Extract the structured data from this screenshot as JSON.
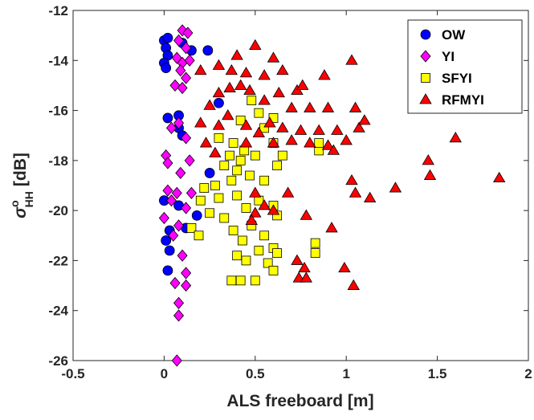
{
  "chart_data": {
    "type": "scatter",
    "x_label": "ALS freeboard [m]",
    "y_label": {
      "symbol": "σ",
      "sup": "o",
      "sub": "HH",
      "unit": "[dB]"
    },
    "xlim": [
      -0.5,
      2
    ],
    "xticks": [
      -0.5,
      0,
      0.5,
      1,
      1.5,
      2
    ],
    "ylim": [
      -26,
      -12
    ],
    "yticks": [
      -26,
      -24,
      -22,
      -20,
      -18,
      -16,
      -14,
      -12
    ],
    "grid": false,
    "legend": "upper right",
    "series": [
      {
        "name": "OW",
        "color": "#0000ff",
        "marker": "circle",
        "x": [
          0,
          0.01,
          0.02,
          0,
          0.01,
          0.02,
          0.1,
          0.15,
          0.24,
          0.3,
          0.02,
          0.08,
          0.08,
          0.1,
          0.25,
          0,
          0.08,
          0.03,
          0.01,
          0.03,
          0.02,
          0.12,
          0.18
        ],
        "values": [
          -13.2,
          -13.5,
          -13.8,
          -14.1,
          -14.3,
          -13.1,
          -13.3,
          -13.6,
          -13.6,
          -15.7,
          -16.3,
          -16.2,
          -16.7,
          -17,
          -18.5,
          -19.6,
          -19.8,
          -20.8,
          -21.2,
          -21.6,
          -22.4,
          -20.7,
          -20.2
        ]
      },
      {
        "name": "YI",
        "color": "#ff00ff",
        "marker": "diamond",
        "x": [
          0.1,
          0.13,
          0.08,
          0.12,
          0.07,
          0.1,
          0.14,
          0.09,
          0.12,
          0.06,
          0.1,
          0.08,
          0.04,
          0.12,
          0.01,
          0.02,
          0.14,
          0.09,
          0.02,
          0.07,
          0.04,
          0.12,
          0,
          0.08,
          0.05,
          0.1,
          0.12,
          0.06,
          0.12,
          0.08,
          0.08,
          0.07,
          0.15
        ],
        "values": [
          -12.8,
          -12.9,
          -13.2,
          -13.5,
          -13.9,
          -14.1,
          -14,
          -14.4,
          -14.7,
          -15,
          -15.1,
          -16.5,
          -16.7,
          -17.1,
          -17.8,
          -18.1,
          -18,
          -18.5,
          -19.2,
          -19.3,
          -19.6,
          -19.9,
          -20.3,
          -20.6,
          -21,
          -21.8,
          -22.5,
          -22.9,
          -23,
          -23.7,
          -24.2,
          -26,
          -19.3
        ]
      },
      {
        "name": "SFYI",
        "color": "#ffff00",
        "marker": "square",
        "x": [
          0.48,
          0.52,
          0.6,
          0.42,
          0.55,
          0.3,
          0.38,
          0.44,
          0.5,
          0.6,
          0.36,
          0.42,
          0.33,
          0.4,
          0.47,
          0.55,
          0.62,
          0.65,
          0.37,
          0.28,
          0.22,
          0.3,
          0.4,
          0.45,
          0.52,
          0.6,
          0.62,
          0.2,
          0.25,
          0.33,
          0.38,
          0.43,
          0.48,
          0.55,
          0.6,
          0.15,
          0.19,
          0.4,
          0.45,
          0.52,
          0.57,
          0.62,
          0.42,
          0.37,
          0.5,
          0.83,
          0.83,
          0.85,
          0.85,
          0.6
        ],
        "values": [
          -15.6,
          -16.1,
          -16.3,
          -16.4,
          -16.7,
          -17.1,
          -17.3,
          -17.6,
          -17.8,
          -17.3,
          -17.8,
          -18,
          -18.2,
          -18.4,
          -18.6,
          -18.8,
          -18.2,
          -17.8,
          -18.8,
          -19,
          -19.1,
          -19.5,
          -19.4,
          -19.9,
          -19.6,
          -19.8,
          -20.2,
          -19.6,
          -20.1,
          -20.3,
          -20.8,
          -21.2,
          -20.6,
          -21,
          -21.5,
          -20.7,
          -21,
          -21.8,
          -22,
          -21.6,
          -22.1,
          -21.7,
          -22.8,
          -22.8,
          -22.8,
          -21.3,
          -21.7,
          -17.6,
          -17.3,
          -22.4
        ]
      },
      {
        "name": "RFMYI",
        "color": "#ff0000",
        "marker": "triangle",
        "x": [
          0.5,
          0.4,
          0.6,
          0.3,
          0.37,
          0.45,
          0.55,
          0.65,
          0.2,
          0.42,
          0.36,
          0.47,
          0.55,
          0.63,
          0.73,
          0.76,
          0.3,
          0.25,
          1.03,
          0.88,
          0.7,
          0.8,
          0.9,
          1.05,
          0.2,
          0.3,
          0.35,
          0.45,
          0.52,
          0.58,
          0.65,
          0.75,
          0.85,
          0.95,
          1.07,
          1.1,
          1,
          0.9,
          0.8,
          0.7,
          0.6,
          0.45,
          0.28,
          0.23,
          0.93,
          1.45,
          1.6,
          1.46,
          1.84,
          1.27,
          1.03,
          1.05,
          1.13,
          0.5,
          0.55,
          0.5,
          0.48,
          0.6,
          0.78,
          0.92,
          0.73,
          0.77,
          0.74,
          0.78,
          0.99,
          1.04,
          0.68
        ],
        "values": [
          -13.4,
          -13.8,
          -13.9,
          -14.2,
          -14.4,
          -14.5,
          -14.6,
          -14.4,
          -14.4,
          -15,
          -15.1,
          -15.2,
          -15.6,
          -15.3,
          -15.2,
          -15,
          -15.3,
          -15.8,
          -14,
          -14.6,
          -15.9,
          -15.9,
          -15.9,
          -15.9,
          -16.5,
          -16.6,
          -16.2,
          -16.6,
          -16.9,
          -16.5,
          -16.7,
          -16.8,
          -16.8,
          -16.8,
          -16.7,
          -16.4,
          -17.2,
          -17.4,
          -17.3,
          -17.2,
          -17.3,
          -17.3,
          -17.7,
          -17.3,
          -17.6,
          -18,
          -17.1,
          -18.6,
          -18.7,
          -19.1,
          -18.8,
          -19.3,
          -19.5,
          -19.3,
          -19.8,
          -20.1,
          -20.4,
          -20,
          -20.2,
          -20.7,
          -22,
          -22.3,
          -22.7,
          -22.7,
          -22.3,
          -23,
          -19.3
        ]
      }
    ]
  }
}
